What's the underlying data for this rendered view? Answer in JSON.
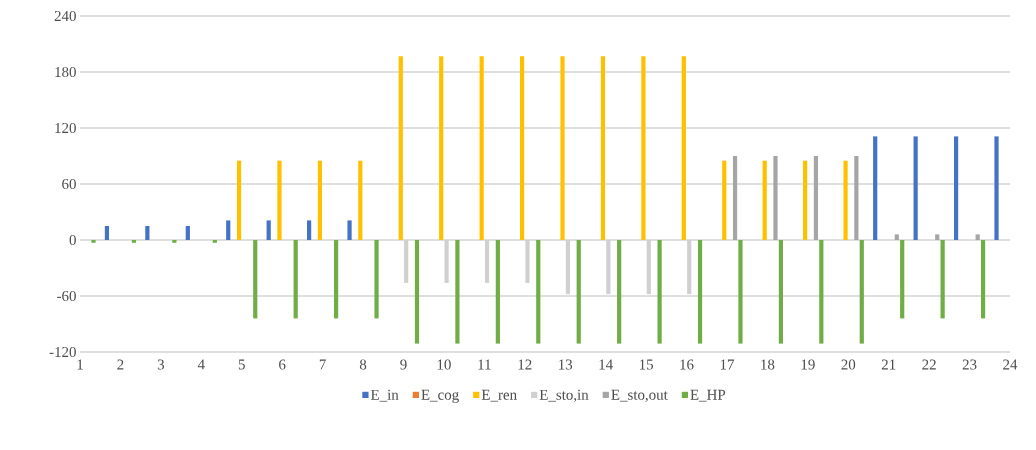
{
  "chart_data": {
    "type": "bar",
    "categories": [
      "1",
      "2",
      "3",
      "4",
      "5",
      "6",
      "7",
      "8",
      "9",
      "10",
      "11",
      "12",
      "13",
      "14",
      "15",
      "16",
      "17",
      "18",
      "19",
      "20",
      "21",
      "22",
      "23",
      "24"
    ],
    "series": [
      {
        "name": "E_in",
        "color": "#4472c4",
        "values": [
          null,
          15,
          15,
          15,
          21,
          21,
          21,
          21,
          0,
          0,
          0,
          0,
          0,
          0,
          0,
          0,
          0,
          0,
          0,
          0,
          111,
          111,
          111,
          111
        ]
      },
      {
        "name": "E_cog",
        "color": "#ed7d31",
        "values": [
          0,
          0,
          0,
          0,
          0,
          0,
          0,
          0,
          0,
          0,
          0,
          0,
          0,
          0,
          0,
          0,
          0,
          0,
          0,
          0,
          0,
          0,
          0,
          null
        ]
      },
      {
        "name": "E_ren",
        "color": "#ffc000",
        "values": [
          0,
          0,
          0,
          0,
          85,
          85,
          85,
          85,
          197,
          197,
          197,
          197,
          197,
          197,
          197,
          197,
          85,
          85,
          85,
          85,
          0,
          0,
          0,
          null
        ]
      },
      {
        "name": "E_sto,in",
        "color": "#d0d0d0",
        "values": [
          0,
          0,
          0,
          0,
          0,
          0,
          0,
          0,
          -46,
          -46,
          -46,
          -46,
          -58,
          -58,
          -58,
          -58,
          0,
          0,
          0,
          0,
          0,
          0,
          0,
          null
        ]
      },
      {
        "name": "E_sto,out",
        "color": "#a5a5a5",
        "values": [
          0,
          0,
          0,
          0,
          0,
          0,
          0,
          0,
          0,
          0,
          0,
          0,
          0,
          0,
          0,
          0,
          90,
          90,
          90,
          90,
          6,
          6,
          6,
          null
        ]
      },
      {
        "name": "E_HP",
        "color": "#70ad47",
        "values": [
          -3,
          -3,
          -3,
          -3,
          -84,
          -84,
          -84,
          -84,
          -111,
          -111,
          -111,
          -111,
          -111,
          -111,
          -111,
          -111,
          -111,
          -111,
          -111,
          -111,
          -84,
          -84,
          -84,
          null
        ]
      }
    ],
    "ylim": [
      -120,
      240
    ],
    "yticks": [
      -120,
      -60,
      0,
      60,
      120,
      180,
      240
    ],
    "grid": "y",
    "legend": "bottom"
  }
}
